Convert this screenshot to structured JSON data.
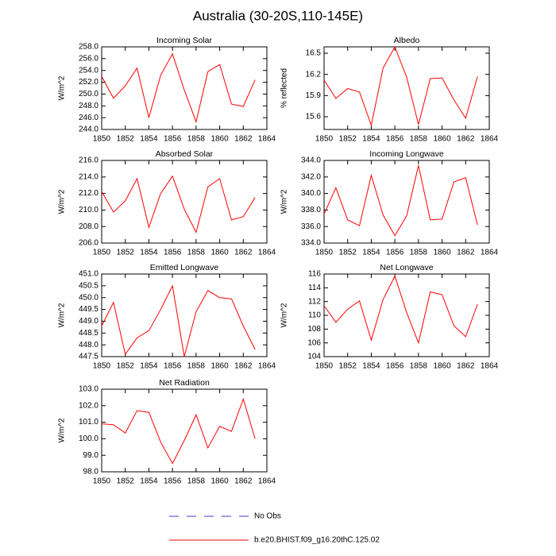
{
  "title": "Australia (30-20S,110-145E)",
  "legend": [
    {
      "name": "No Obs",
      "color": "#3c3cc8",
      "dash": true
    },
    {
      "name": "b.e20.BHIST.f09_g16.20thC.125.02",
      "color": "#ff0000",
      "dash": false
    }
  ],
  "chart_data": [
    {
      "type": "line",
      "title": "Incoming Solar",
      "ylabel": "W/m^2",
      "color": "#ff0000",
      "x": [
        1850,
        1851,
        1852,
        1853,
        1854,
        1855,
        1856,
        1857,
        1858,
        1859,
        1860,
        1861,
        1862,
        1863
      ],
      "values": [
        253.0,
        249.3,
        251.4,
        254.4,
        246.0,
        253.2,
        256.8,
        250.7,
        245.3,
        253.8,
        255.0,
        248.3,
        247.9,
        252.4
      ],
      "xlim": [
        1850,
        1864
      ],
      "xticks": [
        1850,
        1852,
        1854,
        1856,
        1858,
        1860,
        1862,
        1864
      ],
      "ylim": [
        244,
        258
      ],
      "yticks": [
        {
          "value": 244,
          "label": "244.0"
        },
        {
          "value": 246,
          "label": "246.0"
        },
        {
          "value": 248,
          "label": "248.0"
        },
        {
          "value": 250,
          "label": "250.0"
        },
        {
          "value": 252,
          "label": "252.0"
        },
        {
          "value": 254,
          "label": "254.0"
        },
        {
          "value": 256,
          "label": "256.0"
        },
        {
          "value": 258,
          "label": "258.0"
        }
      ]
    },
    {
      "type": "line",
      "title": "Albedo",
      "ylabel": "% reflected",
      "color": "#ff0000",
      "x": [
        1850,
        1851,
        1852,
        1853,
        1854,
        1855,
        1856,
        1857,
        1858,
        1859,
        1860,
        1861,
        1862,
        1863
      ],
      "values": [
        16.12,
        15.86,
        16.0,
        15.95,
        15.48,
        16.29,
        16.59,
        16.16,
        15.49,
        16.14,
        16.15,
        15.84,
        15.58,
        16.17
      ],
      "xlim": [
        1850,
        1864
      ],
      "xticks": [
        1850,
        1852,
        1854,
        1856,
        1858,
        1860,
        1862,
        1864
      ],
      "ylim": [
        15.42,
        16.59
      ],
      "yticks": [
        15.6,
        15.9,
        16.2,
        16.5
      ]
    },
    {
      "type": "line",
      "title": "Absorbed Solar",
      "ylabel": "W/m^2",
      "color": "#ff0000",
      "x": [
        1850,
        1851,
        1852,
        1853,
        1854,
        1855,
        1856,
        1857,
        1858,
        1859,
        1860,
        1861,
        1862,
        1863
      ],
      "values": [
        212.25,
        209.75,
        211.1,
        213.8,
        207.9,
        212.0,
        214.1,
        210.1,
        207.3,
        212.8,
        213.8,
        208.8,
        209.2,
        211.5
      ],
      "xlim": [
        1850,
        1864
      ],
      "xticks": [
        1850,
        1852,
        1854,
        1856,
        1858,
        1860,
        1862,
        1864
      ],
      "ylim": [
        206,
        216
      ],
      "yticks": [
        {
          "value": 206,
          "label": "206.0"
        },
        {
          "value": 208,
          "label": "208.0"
        },
        {
          "value": 210,
          "label": "210.0"
        },
        {
          "value": 212,
          "label": "212.0"
        },
        {
          "value": 214,
          "label": "214.0"
        },
        {
          "value": 216,
          "label": "216.0"
        }
      ]
    },
    {
      "type": "line",
      "title": "Incoming Longwave",
      "ylabel": "W/m^2",
      "color": "#ff0000",
      "x": [
        1850,
        1851,
        1852,
        1853,
        1854,
        1855,
        1856,
        1857,
        1858,
        1859,
        1860,
        1861,
        1862,
        1863
      ],
      "values": [
        337.5,
        340.7,
        336.8,
        336.1,
        342.2,
        337.4,
        334.9,
        337.3,
        343.4,
        336.8,
        336.9,
        341.4,
        341.9,
        336.2
      ],
      "xlim": [
        1850,
        1864
      ],
      "xticks": [
        1850,
        1852,
        1854,
        1856,
        1858,
        1860,
        1862,
        1864
      ],
      "ylim": [
        334,
        344
      ],
      "yticks": [
        {
          "value": 334,
          "label": "334.0"
        },
        {
          "value": 336,
          "label": "336.0"
        },
        {
          "value": 338,
          "label": "338.0"
        },
        {
          "value": 340,
          "label": "340.0"
        },
        {
          "value": 342,
          "label": "342.0"
        },
        {
          "value": 344,
          "label": "344.0"
        }
      ]
    },
    {
      "type": "line",
      "title": "Emitted Longwave",
      "ylabel": "W/m^2",
      "color": "#ff0000",
      "x": [
        1850,
        1851,
        1852,
        1853,
        1854,
        1855,
        1856,
        1857,
        1858,
        1859,
        1860,
        1861,
        1862,
        1863
      ],
      "values": [
        448.8,
        449.8,
        447.6,
        448.3,
        448.6,
        449.5,
        450.5,
        447.5,
        449.4,
        450.3,
        450.0,
        449.95,
        448.8,
        447.8
      ],
      "xlim": [
        1850,
        1864
      ],
      "xticks": [
        1850,
        1852,
        1854,
        1856,
        1858,
        1860,
        1862,
        1864
      ],
      "ylim": [
        447.5,
        451
      ],
      "yticks": [
        447.5,
        {
          "value": 448,
          "label": "448.0"
        },
        448.5,
        {
          "value": 449,
          "label": "449.0"
        },
        449.5,
        {
          "value": 450,
          "label": "450.0"
        },
        450.5,
        {
          "value": 451,
          "label": "451.0"
        }
      ]
    },
    {
      "type": "line",
      "title": "Net Longwave",
      "ylabel": "W/m^2",
      "color": "#ff0000",
      "x": [
        1850,
        1851,
        1852,
        1853,
        1854,
        1855,
        1856,
        1857,
        1858,
        1859,
        1860,
        1861,
        1862,
        1863
      ],
      "values": [
        111.4,
        109.0,
        110.9,
        112.1,
        106.4,
        112.3,
        115.7,
        110.4,
        106.0,
        113.4,
        113.0,
        108.5,
        106.9,
        111.6
      ],
      "xlim": [
        1850,
        1864
      ],
      "xticks": [
        1850,
        1852,
        1854,
        1856,
        1858,
        1860,
        1862,
        1864
      ],
      "ylim": [
        104,
        116
      ],
      "yticks": [
        104,
        106,
        108,
        110,
        112,
        114,
        116
      ]
    },
    {
      "type": "line",
      "title": "Net Radiation",
      "ylabel": "W/m^2",
      "color": "#ff0000",
      "x": [
        1850,
        1851,
        1852,
        1853,
        1854,
        1855,
        1856,
        1857,
        1858,
        1859,
        1860,
        1861,
        1862,
        1863
      ],
      "values": [
        100.9,
        100.85,
        100.35,
        101.7,
        101.6,
        99.8,
        98.5,
        99.9,
        101.45,
        99.45,
        100.75,
        100.45,
        102.4,
        100.0
      ],
      "xlim": [
        1850,
        1864
      ],
      "xticks": [
        1850,
        1852,
        1854,
        1856,
        1858,
        1860,
        1862,
        1864
      ],
      "ylim": [
        98,
        103
      ],
      "yticks": [
        {
          "value": 98,
          "label": "98.0"
        },
        {
          "value": 99,
          "label": "99.0"
        },
        {
          "value": 100,
          "label": "100.0"
        },
        {
          "value": 101,
          "label": "101.0"
        },
        {
          "value": 102,
          "label": "102.0"
        },
        {
          "value": 103,
          "label": "103.0"
        }
      ]
    }
  ]
}
